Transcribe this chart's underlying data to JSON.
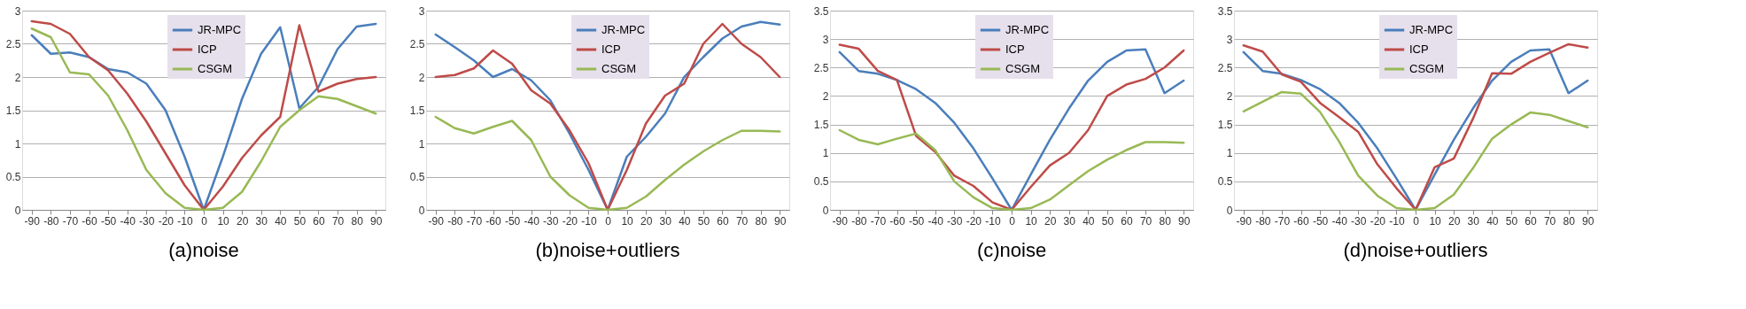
{
  "chart_data": [
    {
      "type": "line",
      "title": "(a)noise",
      "categories": [
        "-90",
        "-80",
        "-70",
        "-60",
        "-50",
        "-40",
        "-30",
        "-20",
        "-10",
        "0",
        "10",
        "20",
        "30",
        "40",
        "50",
        "60",
        "70",
        "80",
        "90"
      ],
      "ylim": [
        0,
        3
      ],
      "yticks": [
        0,
        0.5,
        1,
        1.5,
        2,
        2.5,
        3
      ],
      "grid": "y",
      "legend": "top",
      "series": [
        {
          "name": "JR-MPC",
          "color": "#4a7ebb",
          "values": [
            2.63,
            2.35,
            2.37,
            2.3,
            2.12,
            2.07,
            1.9,
            1.5,
            0.8,
            0,
            0.8,
            1.67,
            2.35,
            2.75,
            1.53,
            1.85,
            2.42,
            2.76,
            2.8
          ]
        },
        {
          "name": "ICP",
          "color": "#be4b48",
          "values": [
            2.84,
            2.8,
            2.65,
            2.3,
            2.1,
            1.75,
            1.33,
            0.85,
            0.37,
            0,
            0.35,
            0.78,
            1.12,
            1.4,
            2.78,
            1.78,
            1.9,
            1.97,
            2.0
          ]
        },
        {
          "name": "CSGM",
          "color": "#98b954",
          "values": [
            2.73,
            2.6,
            2.07,
            2.04,
            1.72,
            1.2,
            0.6,
            0.25,
            0.03,
            0,
            0.03,
            0.27,
            0.73,
            1.25,
            1.5,
            1.71,
            1.67,
            1.56,
            1.45
          ]
        }
      ]
    },
    {
      "type": "line",
      "title": "(b)noise+outliers",
      "categories": [
        "-90",
        "-80",
        "-70",
        "-60",
        "-50",
        "-40",
        "-30",
        "-20",
        "-10",
        "0",
        "10",
        "20",
        "30",
        "40",
        "50",
        "60",
        "70",
        "80",
        "90"
      ],
      "ylim": [
        0,
        3
      ],
      "yticks": [
        0,
        0.5,
        1,
        1.5,
        2,
        2.5,
        3
      ],
      "grid": "y",
      "legend": "top",
      "series": [
        {
          "name": "JR-MPC",
          "color": "#4a7ebb",
          "values": [
            2.64,
            2.45,
            2.25,
            2.0,
            2.12,
            1.95,
            1.65,
            1.15,
            0.6,
            0,
            0.8,
            1.1,
            1.45,
            2.0,
            2.3,
            2.58,
            2.76,
            2.83,
            2.79
          ]
        },
        {
          "name": "ICP",
          "color": "#be4b48",
          "values": [
            2.0,
            2.03,
            2.13,
            2.4,
            2.2,
            1.8,
            1.6,
            1.2,
            0.7,
            0,
            0.6,
            1.3,
            1.72,
            1.9,
            2.5,
            2.8,
            2.5,
            2.3,
            2.0
          ]
        },
        {
          "name": "CSGM",
          "color": "#98b954",
          "values": [
            1.4,
            1.23,
            1.15,
            1.25,
            1.34,
            1.05,
            0.5,
            0.22,
            0.03,
            0,
            0.03,
            0.2,
            0.45,
            0.68,
            0.88,
            1.05,
            1.19,
            1.19,
            1.18
          ]
        }
      ]
    },
    {
      "type": "line",
      "title": "(c)noise",
      "categories": [
        "-90",
        "-80",
        "-70",
        "-60",
        "-50",
        "-40",
        "-30",
        "-20",
        "-10",
        "0",
        "10",
        "20",
        "30",
        "40",
        "50",
        "60",
        "70",
        "80",
        "90"
      ],
      "ylim": [
        0,
        3.5
      ],
      "yticks": [
        0,
        0.5,
        1,
        1.5,
        2,
        2.5,
        3,
        3.5
      ],
      "grid": "y",
      "legend": "top",
      "series": [
        {
          "name": "JR-MPC",
          "color": "#4a7ebb",
          "values": [
            2.77,
            2.44,
            2.39,
            2.28,
            2.12,
            1.88,
            1.53,
            1.08,
            0.55,
            0,
            0.62,
            1.23,
            1.78,
            2.27,
            2.6,
            2.8,
            2.82,
            2.05,
            2.27
          ]
        },
        {
          "name": "ICP",
          "color": "#be4b48",
          "values": [
            2.9,
            2.83,
            2.44,
            2.28,
            1.3,
            1.02,
            0.6,
            0.42,
            0.13,
            0,
            0.4,
            0.78,
            1.0,
            1.4,
            2.0,
            2.2,
            2.3,
            2.5,
            2.8
          ]
        },
        {
          "name": "CSGM",
          "color": "#98b954",
          "values": [
            1.4,
            1.23,
            1.15,
            1.25,
            1.34,
            1.05,
            0.5,
            0.22,
            0.03,
            0,
            0.03,
            0.18,
            0.43,
            0.68,
            0.88,
            1.05,
            1.19,
            1.19,
            1.18
          ]
        }
      ]
    },
    {
      "type": "line",
      "title": "(d)noise+outliers",
      "categories": [
        "-90",
        "-80",
        "-70",
        "-60",
        "-50",
        "-40",
        "-30",
        "-20",
        "-10",
        "0",
        "10",
        "20",
        "30",
        "40",
        "50",
        "60",
        "70",
        "80",
        "90"
      ],
      "ylim": [
        0,
        3.5
      ],
      "yticks": [
        0,
        0.5,
        1,
        1.5,
        2,
        2.5,
        3,
        3.5
      ],
      "grid": "y",
      "legend": "top",
      "series": [
        {
          "name": "JR-MPC",
          "color": "#4a7ebb",
          "values": [
            2.77,
            2.44,
            2.39,
            2.28,
            2.12,
            1.88,
            1.53,
            1.08,
            0.55,
            0,
            0.62,
            1.23,
            1.78,
            2.27,
            2.6,
            2.8,
            2.82,
            2.05,
            2.27
          ]
        },
        {
          "name": "ICP",
          "color": "#be4b48",
          "values": [
            2.89,
            2.78,
            2.38,
            2.25,
            1.88,
            1.63,
            1.37,
            0.8,
            0.38,
            0,
            0.75,
            0.9,
            1.6,
            2.4,
            2.39,
            2.6,
            2.76,
            2.91,
            2.85
          ]
        },
        {
          "name": "CSGM",
          "color": "#98b954",
          "values": [
            1.73,
            1.9,
            2.07,
            2.04,
            1.72,
            1.2,
            0.6,
            0.25,
            0.03,
            0,
            0.03,
            0.27,
            0.73,
            1.25,
            1.5,
            1.71,
            1.67,
            1.56,
            1.45
          ]
        }
      ]
    }
  ]
}
